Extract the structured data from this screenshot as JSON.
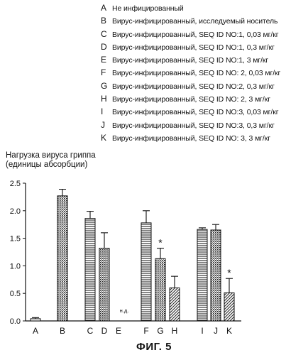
{
  "legend": [
    {
      "letter": "A",
      "text": "Не инфицированный"
    },
    {
      "letter": "B",
      "text": "Вирус-инфицированный, исследуемый носитель"
    },
    {
      "letter": "C",
      "text": "Вирус-инфицированный, SEQ ID NO:1,  0,03 мг/кг"
    },
    {
      "letter": "D",
      "text": "Вирус-инфицированный, SEQ ID NO:1,  0,3 мг/кг"
    },
    {
      "letter": "E",
      "text": "Вирус-инфицированный, SEQ ID NO:1,  3 мг/кг"
    },
    {
      "letter": "F",
      "text": "Вирус-инфицированный, SEQ ID NO: 2, 0,03 мг/кг"
    },
    {
      "letter": "G",
      "text": "Вирус-инфицированный, SEQ ID NO:2,  0,3 мг/кг"
    },
    {
      "letter": "H",
      "text": "Вирус-инфицированный, SEQ ID NO: 2,  3 мг/кг"
    },
    {
      "letter": "I",
      "text": "Вирус-инфицированный, SEQ ID NO:3, 0,03 мг/кг"
    },
    {
      "letter": "J",
      "text": "Вирус-инфицированный, SEQ ID NO:3, 0,3 мг/кг"
    },
    {
      "letter": "K",
      "text": "Вирус-инфицированный, SEQ ID NO: 3,  3 мг/кг"
    }
  ],
  "figure_caption": "ФИГ. 5",
  "chart_data": {
    "type": "bar",
    "ylabel_lines": [
      "Нагрузка вируса гриппа",
      "(единицы абсорбции)"
    ],
    "ylim": [
      0,
      2.5
    ],
    "yticks": [
      "0.0",
      "0.5",
      "1.0",
      "1.5",
      "2.0",
      "2.5"
    ],
    "categories": [
      "A",
      "B",
      "C",
      "D",
      "E",
      "F",
      "G",
      "H",
      "I",
      "J",
      "K"
    ],
    "values": [
      0.04,
      2.27,
      1.86,
      1.32,
      null,
      1.78,
      1.13,
      0.6,
      1.66,
      1.65,
      0.51
    ],
    "errors": [
      0.02,
      0.12,
      0.13,
      0.28,
      null,
      0.22,
      0.19,
      0.21,
      0.03,
      0.1,
      0.26
    ],
    "patterns": [
      "plain",
      "dense-dots",
      "horizontal-lines",
      "dense-dots",
      "none",
      "horizontal-lines",
      "dense-dots",
      "diagonal-hatch",
      "horizontal-lines",
      "dense-dots",
      "diagonal-hatch"
    ],
    "significant": [
      false,
      false,
      false,
      false,
      false,
      false,
      true,
      false,
      false,
      false,
      true
    ],
    "significance_marker": "*",
    "na_label": "н.д.",
    "na_category": "E"
  }
}
